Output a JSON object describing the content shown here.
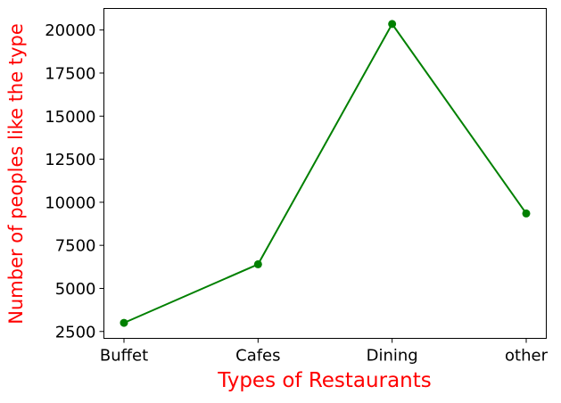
{
  "chart_data": {
    "type": "line",
    "categories": [
      "Buffet",
      "Cafes",
      "Dining",
      "other"
    ],
    "series": [
      {
        "values": [
          3000,
          6400,
          20350,
          9350
        ],
        "color": "#008000",
        "marker": "circle"
      }
    ],
    "xlabel": "Types of Restaurants",
    "ylabel": "Number of peoples like the type",
    "label_color": "#ff0000",
    "ylim": [
      2100,
      21250
    ],
    "yticks": [
      "2500",
      "5000",
      "7500",
      "10000",
      "12500",
      "15000",
      "17500",
      "20000"
    ],
    "grid": false
  }
}
